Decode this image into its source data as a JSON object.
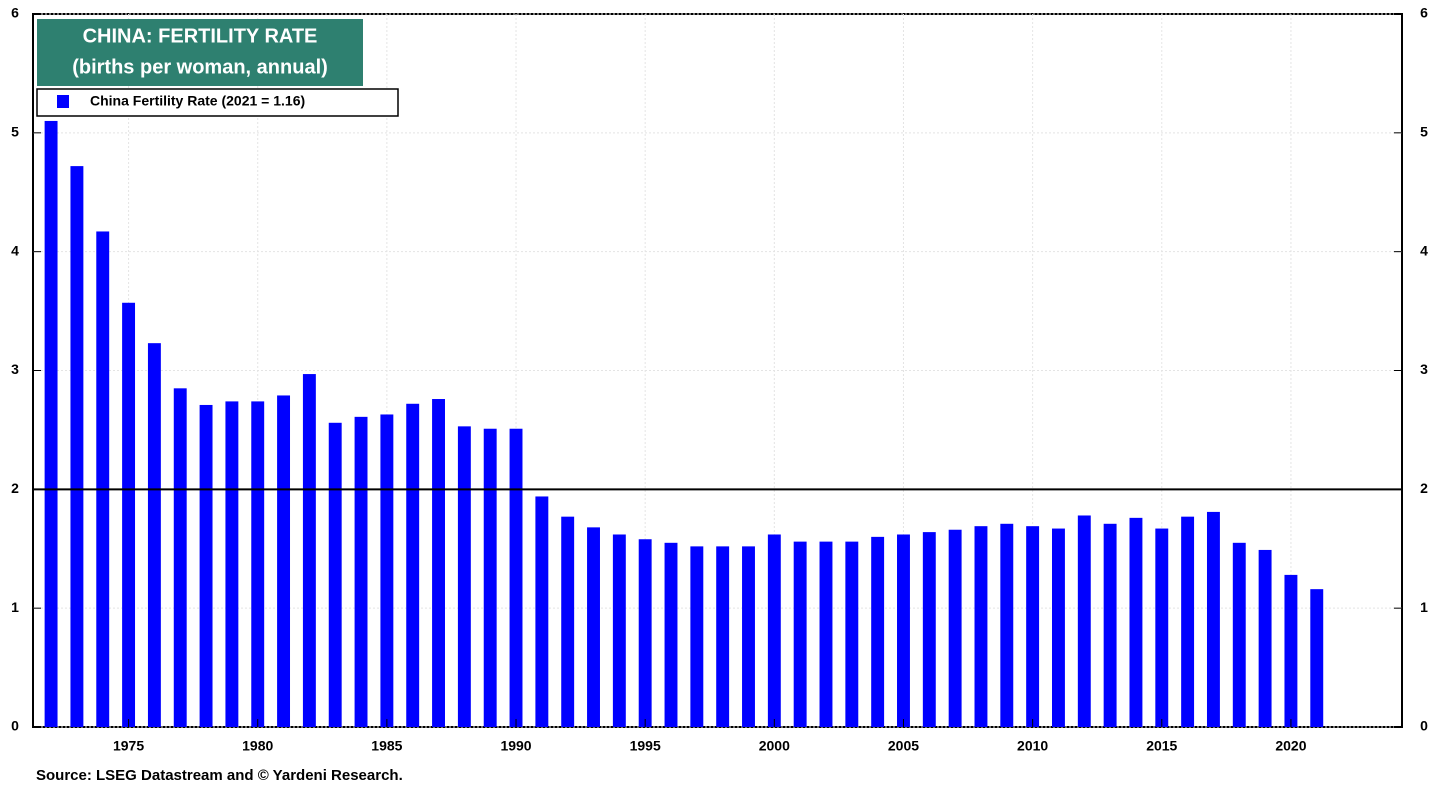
{
  "chart_data": {
    "type": "bar",
    "title": "CHINA: FERTILITY RATE",
    "subtitle": "(births per woman, annual)",
    "source": "Source: LSEG Datastream and © Yardeni Research.",
    "legend_position": "top-left",
    "grid": true,
    "hline": 2,
    "x": [
      1972,
      1973,
      1974,
      1975,
      1976,
      1977,
      1978,
      1979,
      1980,
      1981,
      1982,
      1983,
      1984,
      1985,
      1986,
      1987,
      1988,
      1989,
      1990,
      1991,
      1992,
      1993,
      1994,
      1995,
      1996,
      1997,
      1998,
      1999,
      2000,
      2001,
      2002,
      2003,
      2004,
      2005,
      2006,
      2007,
      2008,
      2009,
      2010,
      2011,
      2012,
      2013,
      2014,
      2015,
      2016,
      2017,
      2018,
      2019,
      2020,
      2021
    ],
    "series": [
      {
        "name": "China Fertility Rate (2021 = 1.16)",
        "color": "#0000ff",
        "values": [
          5.1,
          4.72,
          4.17,
          3.57,
          3.23,
          2.85,
          2.71,
          2.74,
          2.74,
          2.79,
          2.97,
          2.56,
          2.61,
          2.63,
          2.72,
          2.76,
          2.53,
          2.51,
          2.51,
          1.94,
          1.77,
          1.68,
          1.62,
          1.58,
          1.55,
          1.52,
          1.52,
          1.52,
          1.62,
          1.56,
          1.56,
          1.56,
          1.6,
          1.62,
          1.64,
          1.66,
          1.69,
          1.71,
          1.69,
          1.67,
          1.78,
          1.71,
          1.76,
          1.67,
          1.77,
          1.81,
          1.55,
          1.49,
          1.28,
          1.16
        ]
      }
    ],
    "xlim": [
      1971.3,
      2024.3
    ],
    "xticks": [
      1975,
      1980,
      1985,
      1990,
      1995,
      2000,
      2005,
      2010,
      2015,
      2020
    ],
    "ylim": [
      0,
      6
    ],
    "yticks": [
      0,
      1,
      2,
      3,
      4,
      5,
      6
    ]
  }
}
